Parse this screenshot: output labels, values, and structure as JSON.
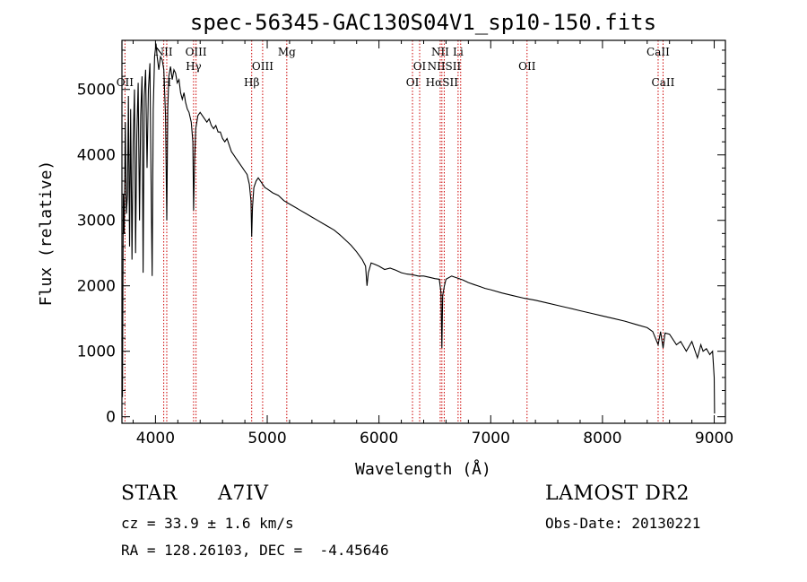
{
  "chart_data": {
    "type": "line",
    "title": "spec-56345-GAC130S04V1_sp10-150.fits",
    "xlabel": "Wavelength (Å)",
    "ylabel": "Flux (relative)",
    "xlim": [
      3700,
      9100
    ],
    "ylim": [
      -100,
      5750
    ],
    "xticks": [
      4000,
      5000,
      6000,
      7000,
      8000,
      9000
    ],
    "yticks": [
      0,
      1000,
      2000,
      3000,
      4000,
      5000
    ],
    "grid": false,
    "line_color": "#000000",
    "marker_color": "#cc0000",
    "series": [
      {
        "values": [
          [
            3700,
            1200
          ],
          [
            3705,
            300
          ],
          [
            3712,
            3400
          ],
          [
            3720,
            2800
          ],
          [
            3730,
            4500
          ],
          [
            3740,
            3100
          ],
          [
            3750,
            3400
          ],
          [
            3758,
            4900
          ],
          [
            3768,
            2600
          ],
          [
            3778,
            4700
          ],
          [
            3790,
            2400
          ],
          [
            3800,
            4200
          ],
          [
            3812,
            5000
          ],
          [
            3822,
            2500
          ],
          [
            3833,
            4300
          ],
          [
            3845,
            5100
          ],
          [
            3857,
            3000
          ],
          [
            3868,
            4600
          ],
          [
            3880,
            5200
          ],
          [
            3889,
            2200
          ],
          [
            3900,
            4900
          ],
          [
            3912,
            5300
          ],
          [
            3925,
            3800
          ],
          [
            3937,
            5000
          ],
          [
            3950,
            5400
          ],
          [
            3962,
            3300
          ],
          [
            3970,
            2150
          ],
          [
            3980,
            4700
          ],
          [
            3992,
            5500
          ],
          [
            4005,
            5700
          ],
          [
            4015,
            5500
          ],
          [
            4030,
            5300
          ],
          [
            4045,
            5500
          ],
          [
            4060,
            5450
          ],
          [
            4075,
            5300
          ],
          [
            4090,
            4600
          ],
          [
            4101,
            3000
          ],
          [
            4110,
            4700
          ],
          [
            4120,
            5200
          ],
          [
            4135,
            5350
          ],
          [
            4150,
            5150
          ],
          [
            4165,
            5300
          ],
          [
            4180,
            5250
          ],
          [
            4195,
            5100
          ],
          [
            4210,
            5150
          ],
          [
            4225,
            4950
          ],
          [
            4240,
            4850
          ],
          [
            4255,
            4950
          ],
          [
            4270,
            4800
          ],
          [
            4285,
            4700
          ],
          [
            4300,
            4650
          ],
          [
            4320,
            4500
          ],
          [
            4335,
            4200
          ],
          [
            4341,
            3150
          ],
          [
            4350,
            3900
          ],
          [
            4360,
            4400
          ],
          [
            4380,
            4600
          ],
          [
            4400,
            4650
          ],
          [
            4420,
            4600
          ],
          [
            4440,
            4550
          ],
          [
            4460,
            4500
          ],
          [
            4480,
            4550
          ],
          [
            4500,
            4450
          ],
          [
            4520,
            4400
          ],
          [
            4540,
            4450
          ],
          [
            4560,
            4350
          ],
          [
            4580,
            4350
          ],
          [
            4600,
            4250
          ],
          [
            4620,
            4200
          ],
          [
            4640,
            4250
          ],
          [
            4660,
            4150
          ],
          [
            4680,
            4050
          ],
          [
            4700,
            4000
          ],
          [
            4720,
            3950
          ],
          [
            4740,
            3900
          ],
          [
            4760,
            3850
          ],
          [
            4780,
            3800
          ],
          [
            4800,
            3750
          ],
          [
            4820,
            3700
          ],
          [
            4840,
            3550
          ],
          [
            4855,
            3300
          ],
          [
            4861,
            2750
          ],
          [
            4868,
            3200
          ],
          [
            4880,
            3500
          ],
          [
            4900,
            3600
          ],
          [
            4920,
            3650
          ],
          [
            4940,
            3600
          ],
          [
            4960,
            3550
          ],
          [
            4980,
            3500
          ],
          [
            5000,
            3480
          ],
          [
            5050,
            3420
          ],
          [
            5100,
            3380
          ],
          [
            5150,
            3300
          ],
          [
            5200,
            3250
          ],
          [
            5250,
            3200
          ],
          [
            5300,
            3150
          ],
          [
            5350,
            3100
          ],
          [
            5400,
            3050
          ],
          [
            5450,
            3000
          ],
          [
            5500,
            2950
          ],
          [
            5550,
            2900
          ],
          [
            5600,
            2850
          ],
          [
            5650,
            2780
          ],
          [
            5700,
            2700
          ],
          [
            5750,
            2620
          ],
          [
            5800,
            2520
          ],
          [
            5850,
            2400
          ],
          [
            5880,
            2300
          ],
          [
            5893,
            2000
          ],
          [
            5905,
            2200
          ],
          [
            5930,
            2350
          ],
          [
            5960,
            2330
          ],
          [
            6000,
            2300
          ],
          [
            6050,
            2250
          ],
          [
            6100,
            2270
          ],
          [
            6150,
            2240
          ],
          [
            6200,
            2200
          ],
          [
            6250,
            2180
          ],
          [
            6300,
            2170
          ],
          [
            6350,
            2150
          ],
          [
            6400,
            2150
          ],
          [
            6450,
            2130
          ],
          [
            6500,
            2110
          ],
          [
            6540,
            2100
          ],
          [
            6555,
            1900
          ],
          [
            6563,
            1050
          ],
          [
            6570,
            1850
          ],
          [
            6585,
            2000
          ],
          [
            6600,
            2100
          ],
          [
            6650,
            2150
          ],
          [
            6700,
            2120
          ],
          [
            6750,
            2090
          ],
          [
            6800,
            2050
          ],
          [
            6850,
            2020
          ],
          [
            6900,
            1990
          ],
          [
            6950,
            1960
          ],
          [
            7000,
            1940
          ],
          [
            7100,
            1890
          ],
          [
            7200,
            1850
          ],
          [
            7300,
            1810
          ],
          [
            7400,
            1780
          ],
          [
            7500,
            1740
          ],
          [
            7600,
            1700
          ],
          [
            7700,
            1660
          ],
          [
            7800,
            1620
          ],
          [
            7900,
            1580
          ],
          [
            8000,
            1540
          ],
          [
            8100,
            1500
          ],
          [
            8200,
            1460
          ],
          [
            8300,
            1410
          ],
          [
            8400,
            1360
          ],
          [
            8450,
            1300
          ],
          [
            8498,
            1100
          ],
          [
            8520,
            1300
          ],
          [
            8542,
            1050
          ],
          [
            8560,
            1280
          ],
          [
            8600,
            1260
          ],
          [
            8662,
            1100
          ],
          [
            8700,
            1150
          ],
          [
            8750,
            1000
          ],
          [
            8800,
            1150
          ],
          [
            8850,
            900
          ],
          [
            8880,
            1100
          ],
          [
            8900,
            1000
          ],
          [
            8930,
            1040
          ],
          [
            8960,
            950
          ],
          [
            8985,
            1000
          ],
          [
            9000,
            600
          ],
          [
            9003,
            50
          ]
        ]
      }
    ],
    "lines": [
      {
        "label": "OII",
        "wavelength": 3727,
        "pos": "low"
      },
      {
        "label": "NII",
        "wavelength": 4074,
        "pos": "high"
      },
      {
        "label": "H",
        "wavelength": 4101,
        "pos": "low"
      },
      {
        "label": "OIII",
        "wavelength": 4363,
        "pos": "high"
      },
      {
        "label": "Hγ",
        "wavelength": 4341,
        "pos": "mid"
      },
      {
        "label": "Hβ",
        "wavelength": 4861,
        "pos": "low"
      },
      {
        "label": "OIII",
        "wavelength": 4959,
        "pos": "mid"
      },
      {
        "label": "Mg",
        "wavelength": 5175,
        "pos": "high"
      },
      {
        "label": "OI",
        "wavelength": 6300,
        "pos": "low"
      },
      {
        "label": "OI",
        "wavelength": 6364,
        "pos": "mid"
      },
      {
        "label": "NII",
        "wavelength": 6548,
        "pos": "high"
      },
      {
        "label": "Li",
        "wavelength": 6708,
        "pos": "high"
      },
      {
        "label": "NIISII",
        "wavelength": 6584,
        "pos": "mid"
      },
      {
        "label": "HαSII",
        "wavelength": 6563,
        "pos": "low"
      },
      {
        "label": "OII",
        "wavelength": 7325,
        "pos": "mid"
      },
      {
        "label": "CaII",
        "wavelength": 8498,
        "pos": "high"
      },
      {
        "label": "CaII",
        "wavelength": 8542,
        "pos": "low"
      }
    ],
    "line_markers": [
      3727,
      4074,
      4101,
      4341,
      4363,
      4861,
      4959,
      5175,
      6300,
      6364,
      6548,
      6563,
      6584,
      6708,
      6731,
      7325,
      8498,
      8542
    ]
  },
  "info": {
    "type": "STAR",
    "subclass": "A7IV",
    "survey": "LAMOST DR2",
    "cz": "cz = 33.9 ± 1.6 km/s",
    "obs_date": "Obs-Date: 20130221",
    "coords": "RA = 128.26103, DEC =  -4.45646"
  }
}
